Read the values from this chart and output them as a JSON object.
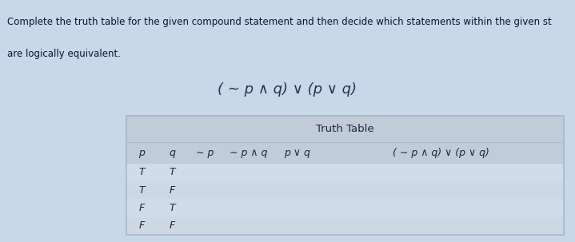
{
  "title_text": "( ∼ p ∧ q) ∨ (p ∨ q)",
  "instruction_line1": "Complete the truth table for the given compound statement and then decide which statements within the given st",
  "instruction_line2": "are logically equivalent.",
  "truth_table_title": "Truth Table",
  "col_headers": [
    "p",
    "q",
    "∼ p",
    "∼ p ∧ q",
    "p ∨ q",
    "( ∼ p ∧ q) ∨ (p ∨ q)"
  ],
  "rows": [
    [
      "T",
      "T",
      "",
      "",
      "",
      ""
    ],
    [
      "T",
      "F",
      "",
      "",
      "",
      ""
    ],
    [
      "F",
      "T",
      "",
      "",
      "",
      ""
    ],
    [
      "F",
      "F",
      "",
      "",
      "",
      ""
    ]
  ],
  "bg_color": "#c8d8e8",
  "table_bg": "#d0dce8",
  "header_bg": "#c0ccd8",
  "text_color": "#222244",
  "title_color": "#223355",
  "instruction_color": "#111133",
  "table_border_color": "#aabbcc"
}
